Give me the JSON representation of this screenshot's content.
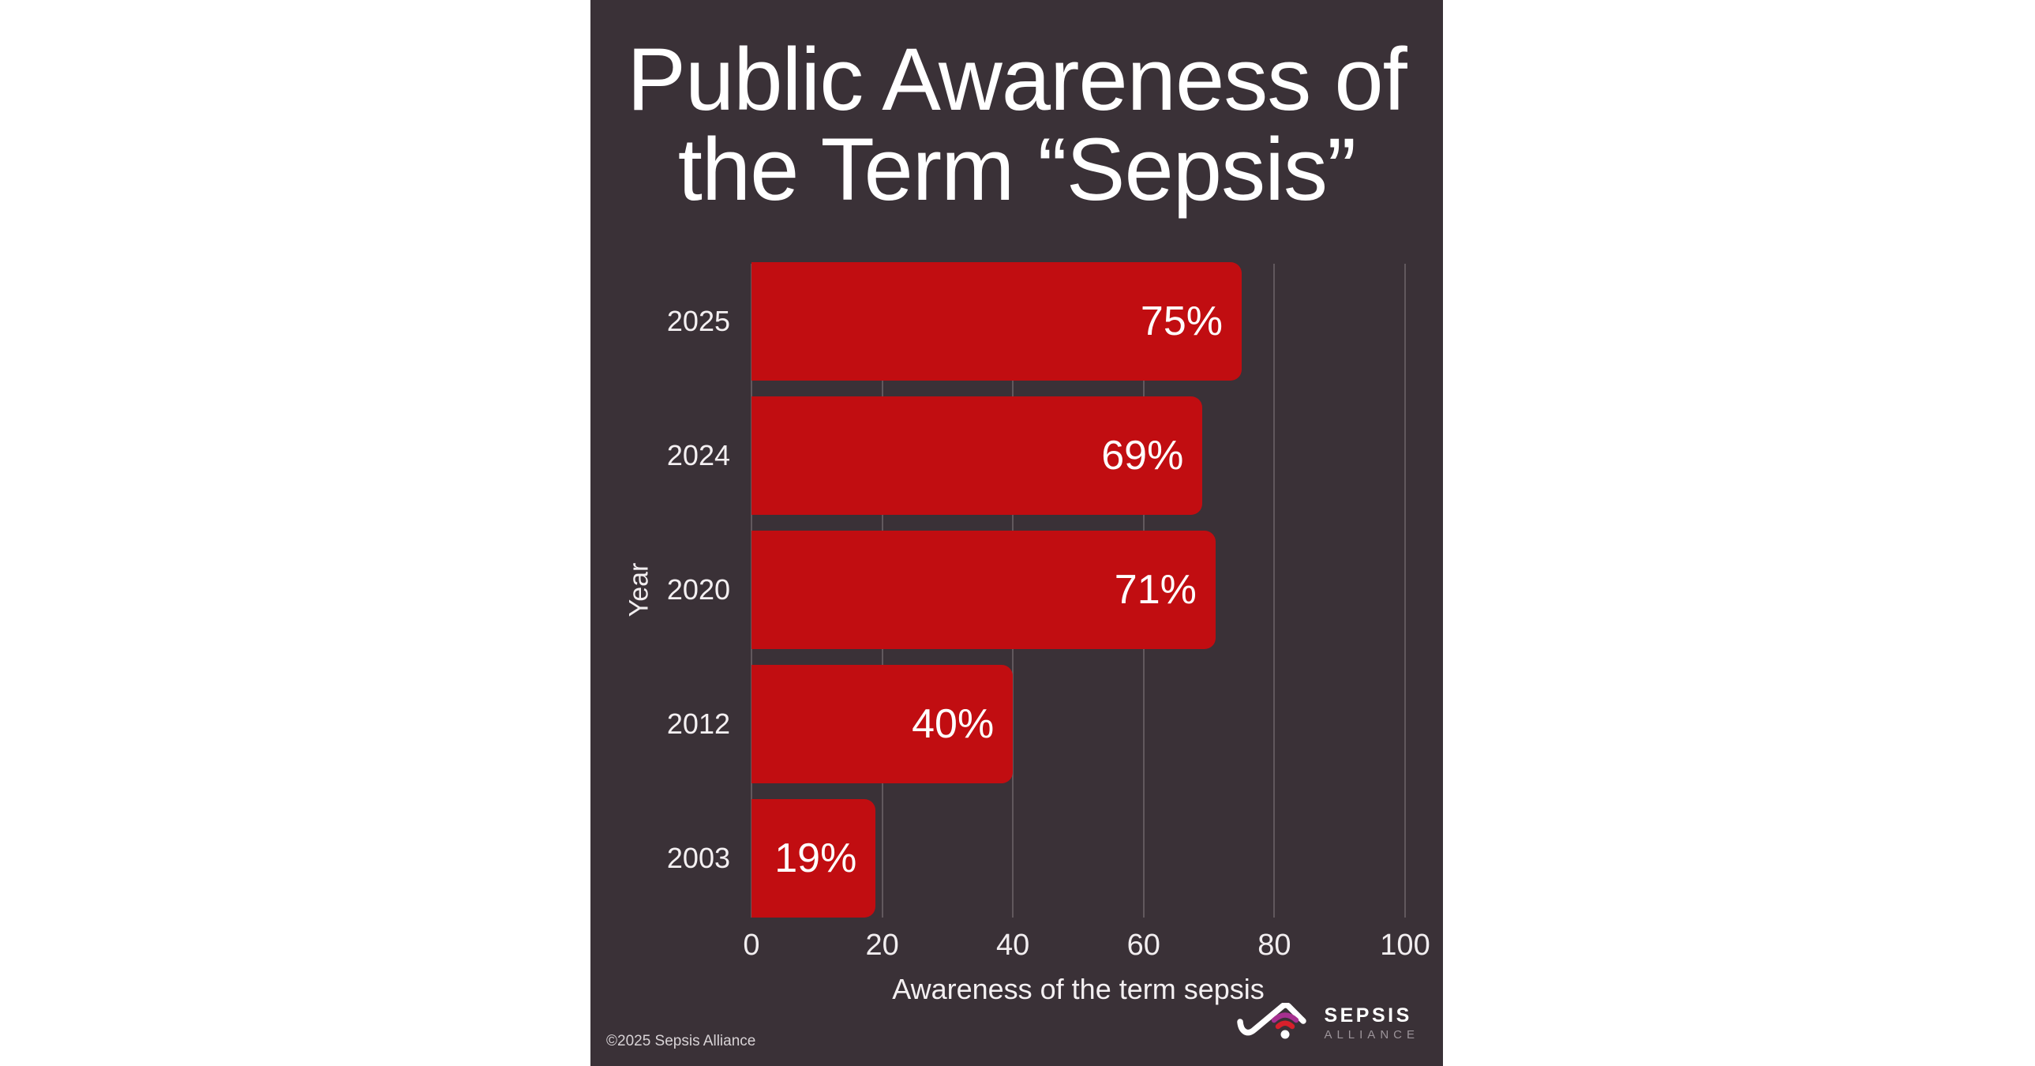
{
  "page": {
    "canvas_background": "#ffffff",
    "panel_background": "#3a3137"
  },
  "chart_data": {
    "type": "bar",
    "orientation": "horizontal",
    "title": "Public Awareness of the Term “Sepsis”",
    "title_lines": [
      "Public Awareness of",
      "the Term “Sepsis”"
    ],
    "xlabel": "Awareness of the term sepsis",
    "ylabel": "Year",
    "categories": [
      "2025",
      "2024",
      "2020",
      "2012",
      "2003"
    ],
    "values": [
      75,
      69,
      71,
      40,
      19
    ],
    "value_labels": [
      "75%",
      "69%",
      "71%",
      "40%",
      "19%"
    ],
    "xlim": [
      0,
      100
    ],
    "xticks": [
      0,
      20,
      40,
      60,
      80,
      100
    ],
    "grid": true,
    "legend": "none",
    "bar_color": "#c10d11",
    "value_label_color": "#ffffff",
    "tick_label_color": "#f2eef0",
    "gridline_color": "rgba(235,228,233,0.22)"
  },
  "footer": {
    "copyright": "©2025 Sepsis Alliance",
    "logo": {
      "name": "SEPSIS",
      "subname": "ALLIANCE",
      "swoosh_white": "#ffffff",
      "arc_magenta": "#a6308f",
      "arc_red": "#d6202b"
    }
  }
}
